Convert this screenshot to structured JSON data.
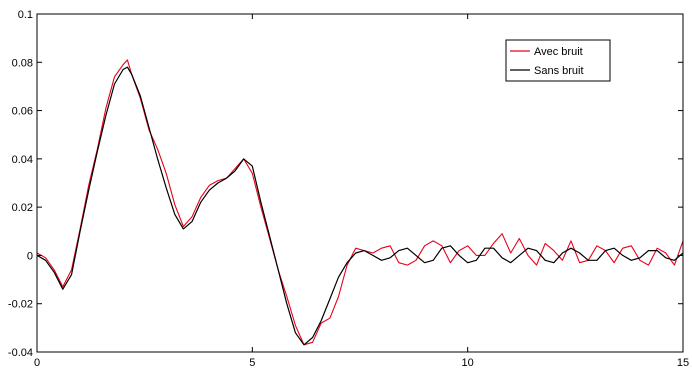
{
  "chart_data": {
    "type": "line",
    "title": "",
    "xlabel": "",
    "ylabel": "",
    "xlim": [
      0,
      15
    ],
    "ylim": [
      -0.04,
      0.1
    ],
    "xticks": [
      0,
      5,
      10,
      15
    ],
    "xtick_labels": [
      "0",
      "5",
      "10",
      "15"
    ],
    "yticks": [
      -0.04,
      -0.02,
      0,
      0.02,
      0.04,
      0.06,
      0.08,
      0.1
    ],
    "ytick_labels": [
      "-0.04",
      "-0.02",
      "0",
      "0.02",
      "0.04",
      "0.06",
      "0.08",
      "0.1"
    ],
    "grid": false,
    "legend_position": "top-right",
    "series": [
      {
        "name": "Avec bruit",
        "color": "#e8001c",
        "x": [
          0,
          0.2,
          0.4,
          0.6,
          0.8,
          1.0,
          1.2,
          1.4,
          1.6,
          1.8,
          2.0,
          2.1,
          2.2,
          2.4,
          2.6,
          2.8,
          3.0,
          3.2,
          3.4,
          3.6,
          3.8,
          4.0,
          4.2,
          4.4,
          4.6,
          4.8,
          5.0,
          5.2,
          5.4,
          5.6,
          5.8,
          6.0,
          6.2,
          6.4,
          6.6,
          6.8,
          7.0,
          7.2,
          7.4,
          7.6,
          7.8,
          8.0,
          8.2,
          8.4,
          8.6,
          8.8,
          9.0,
          9.2,
          9.4,
          9.6,
          9.8,
          10.0,
          10.2,
          10.4,
          10.6,
          10.8,
          11.0,
          11.2,
          11.4,
          11.6,
          11.8,
          12.0,
          12.2,
          12.4,
          12.6,
          12.8,
          13.0,
          13.2,
          13.4,
          13.6,
          13.8,
          14.0,
          14.2,
          14.4,
          14.6,
          14.8,
          15.0
        ],
        "y": [
          0.001,
          -0.001,
          -0.006,
          -0.013,
          -0.006,
          0.011,
          0.029,
          0.044,
          0.061,
          0.074,
          0.079,
          0.081,
          0.075,
          0.065,
          0.052,
          0.044,
          0.034,
          0.021,
          0.012,
          0.016,
          0.024,
          0.029,
          0.031,
          0.032,
          0.036,
          0.04,
          0.034,
          0.02,
          0.007,
          -0.006,
          -0.017,
          -0.029,
          -0.037,
          -0.036,
          -0.028,
          -0.026,
          -0.017,
          -0.004,
          0.003,
          0.002,
          0.001,
          0.003,
          0.004,
          -0.003,
          -0.004,
          -0.002,
          0.004,
          0.006,
          0.004,
          -0.003,
          0.002,
          0.004,
          0.0,
          0.0,
          0.005,
          0.009,
          0.001,
          0.007,
          0.0,
          -0.004,
          0.005,
          0.002,
          -0.002,
          0.006,
          -0.003,
          -0.002,
          0.004,
          0.002,
          -0.003,
          0.003,
          0.004,
          -0.002,
          -0.004,
          0.003,
          0.001,
          -0.004,
          0.006
        ]
      },
      {
        "name": "Sans bruit",
        "color": "#000000",
        "x": [
          0,
          0.2,
          0.4,
          0.6,
          0.8,
          1.0,
          1.2,
          1.4,
          1.6,
          1.8,
          2.0,
          2.1,
          2.2,
          2.4,
          2.6,
          2.8,
          3.0,
          3.2,
          3.4,
          3.6,
          3.8,
          4.0,
          4.2,
          4.4,
          4.6,
          4.8,
          5.0,
          5.2,
          5.4,
          5.6,
          5.8,
          6.0,
          6.2,
          6.4,
          6.6,
          6.8,
          7.0,
          7.2,
          7.4,
          7.6,
          7.8,
          8.0,
          8.2,
          8.4,
          8.6,
          8.8,
          9.0,
          9.2,
          9.4,
          9.6,
          9.8,
          10.0,
          10.2,
          10.4,
          10.6,
          10.8,
          11.0,
          11.2,
          11.4,
          11.6,
          11.8,
          12.0,
          12.2,
          12.4,
          12.6,
          12.8,
          13.0,
          13.2,
          13.4,
          13.6,
          13.8,
          14.0,
          14.2,
          14.4,
          14.6,
          14.8,
          15.0
        ],
        "y": [
          0.0,
          -0.002,
          -0.007,
          -0.014,
          -0.008,
          0.01,
          0.027,
          0.043,
          0.058,
          0.071,
          0.077,
          0.078,
          0.075,
          0.066,
          0.053,
          0.04,
          0.028,
          0.017,
          0.011,
          0.014,
          0.022,
          0.027,
          0.03,
          0.032,
          0.035,
          0.04,
          0.037,
          0.022,
          0.008,
          -0.006,
          -0.02,
          -0.032,
          -0.037,
          -0.034,
          -0.027,
          -0.018,
          -0.009,
          -0.003,
          0.001,
          0.002,
          0.0,
          -0.002,
          -0.001,
          0.002,
          0.003,
          0.0,
          -0.003,
          -0.002,
          0.003,
          0.004,
          0.0,
          -0.003,
          -0.002,
          0.003,
          0.003,
          -0.001,
          -0.003,
          0.0,
          0.003,
          0.002,
          -0.002,
          -0.003,
          0.001,
          0.003,
          0.001,
          -0.002,
          -0.002,
          0.002,
          0.003,
          0.0,
          -0.002,
          -0.001,
          0.002,
          0.002,
          -0.001,
          -0.002,
          0.001
        ]
      }
    ]
  }
}
